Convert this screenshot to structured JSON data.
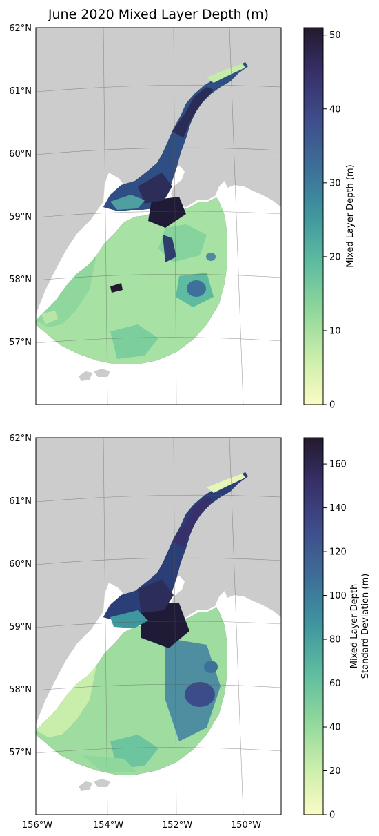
{
  "title": "June 2020 Mixed Layer Depth (m)",
  "lat_labels": [
    "62°N",
    "61°N",
    "60°N",
    "59°N",
    "58°N",
    "57°N"
  ],
  "lon_labels": [
    "156°W",
    "154°W",
    "152°W",
    "150°W"
  ],
  "panels": [
    {
      "id": "mean",
      "colorbar_label": "Mixed Layer Depth (m)",
      "colorbar_ticks": [
        "0",
        "10",
        "20",
        "30",
        "40",
        "50"
      ],
      "colorbar_range": [
        0,
        51
      ]
    },
    {
      "id": "stddev",
      "colorbar_label_line1": "Mixed Layer Depth",
      "colorbar_label_line2": "Standard Deviation (m)",
      "colorbar_ticks": [
        "0",
        "20",
        "40",
        "60",
        "80",
        "100",
        "120",
        "140",
        "160"
      ],
      "colorbar_range": [
        0,
        172
      ]
    }
  ],
  "colors": {
    "land": "#cccccc",
    "ocean_background": "#ffffff",
    "colormap": [
      "#fbfbc5",
      "#cbeeab",
      "#8fd79c",
      "#5dbba0",
      "#3f979f",
      "#3d7199",
      "#3f4e8c",
      "#37306a",
      "#241a2d"
    ]
  }
}
